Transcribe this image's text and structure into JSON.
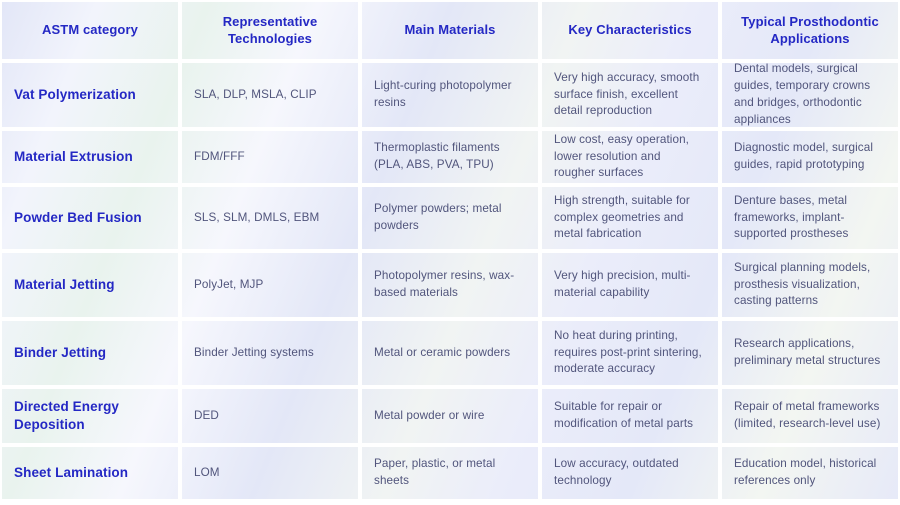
{
  "colors": {
    "accent_blue": "#2428c4",
    "body_text": "#51557c",
    "cell_tint": "#e7eaf9",
    "gap": "#ffffff"
  },
  "table": {
    "headers": [
      "ASTM category",
      "Representative Technologies",
      "Main Materials",
      "Key Characteristics",
      "Typical Prosthodontic Applications"
    ],
    "rows": [
      {
        "category": "Vat Polymerization",
        "technologies": "SLA, DLP, MSLA, CLIP",
        "materials": "Light-curing photopolymer resins",
        "characteristics": "Very high accuracy, smooth surface finish, excellent detail reproduction",
        "applications": "Dental models, surgical guides, temporary crowns and bridges, orthodontic appliances"
      },
      {
        "category": "Material Extrusion",
        "technologies": "FDM/FFF",
        "materials": "Thermoplastic filaments (PLA, ABS, PVA, TPU)",
        "characteristics": "Low cost, easy operation, lower resolution and rougher surfaces",
        "applications": "Diagnostic model, surgical guides, rapid prototyping"
      },
      {
        "category": "Powder Bed Fusion",
        "technologies": "SLS, SLM, DMLS, EBM",
        "materials": "Polymer powders; metal powders",
        "characteristics": "High strength, suitable for complex geometries and metal fabrication",
        "applications": "Denture bases, metal frameworks, implant-supported prostheses"
      },
      {
        "category": "Material Jetting",
        "technologies": "PolyJet, MJP",
        "materials": "Photopolymer resins, wax-based materials",
        "characteristics": "Very high precision, multi-material capability",
        "applications": "Surgical planning models, prosthesis visualization, casting patterns"
      },
      {
        "category": "Binder Jetting",
        "technologies": "Binder Jetting systems",
        "materials": "Metal or ceramic powders",
        "characteristics": "No heat during printing, requires post-print sintering, moderate accuracy",
        "applications": "Research applications, preliminary metal structures"
      },
      {
        "category": "Directed Energy Deposition",
        "technologies": "DED",
        "materials": "Metal powder or wire",
        "characteristics": "Suitable for repair or modification of metal parts",
        "applications": "Repair of metal frameworks (limited, research-level use)"
      },
      {
        "category": "Sheet Lamination",
        "technologies": "LOM",
        "materials": "Paper, plastic, or metal sheets",
        "characteristics": "Low accuracy, outdated technology",
        "applications": "Education model, historical references only"
      }
    ]
  }
}
